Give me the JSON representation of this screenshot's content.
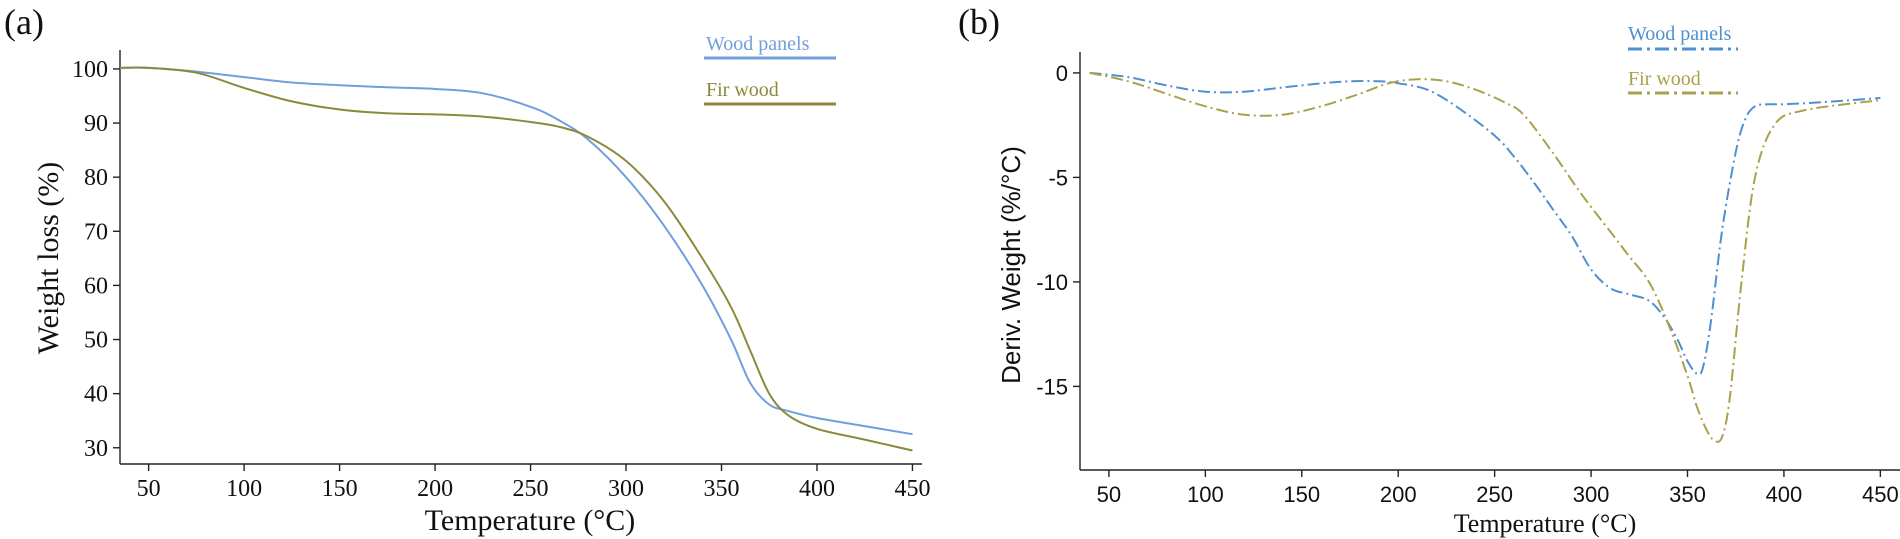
{
  "chart_data": [
    {
      "panel_label": "(a)",
      "type": "line",
      "title": "",
      "xlabel": "Temperature (°C)",
      "ylabel": "Weight loss (%)",
      "xlim": [
        35,
        455
      ],
      "ylim": [
        27,
        103.5
      ],
      "xticks": [
        50,
        100,
        150,
        200,
        250,
        300,
        350,
        400,
        450
      ],
      "yticks": [
        30,
        40,
        50,
        60,
        70,
        80,
        90,
        100
      ],
      "legend": "top-right",
      "series": [
        {
          "name": "Wood panels",
          "color": "#6f9fdc",
          "x": [
            35,
            50,
            75,
            100,
            125,
            150,
            175,
            200,
            225,
            250,
            265,
            280,
            300,
            320,
            340,
            355,
            365,
            375,
            385,
            400,
            425,
            450
          ],
          "y": [
            100.2,
            100.2,
            99.5,
            98.5,
            97.5,
            97,
            96.6,
            96.3,
            95.5,
            93,
            90.5,
            87,
            80,
            71,
            60,
            50,
            42,
            38,
            36.8,
            35.5,
            34,
            32.5
          ]
        },
        {
          "name": "Fir wood",
          "color": "#8b8a3c",
          "x": [
            35,
            50,
            75,
            100,
            125,
            150,
            175,
            200,
            225,
            250,
            265,
            280,
            300,
            320,
            340,
            355,
            365,
            375,
            385,
            400,
            425,
            450
          ],
          "y": [
            100.2,
            100.2,
            99.3,
            96.5,
            94,
            92.5,
            91.8,
            91.6,
            91.2,
            90.2,
            89.3,
            87.5,
            83,
            75.5,
            65,
            56,
            48,
            40,
            36,
            33.5,
            31.5,
            29.5
          ]
        }
      ]
    },
    {
      "panel_label": "(b)",
      "type": "line",
      "title": "",
      "xlabel": "Temperature (°C)",
      "ylabel": "Deriv. Weight (%/°C)",
      "xlim": [
        35,
        455
      ],
      "ylim": [
        -19,
        1
      ],
      "xticks": [
        50,
        100,
        150,
        200,
        250,
        300,
        350,
        400,
        450
      ],
      "yticks": [
        0,
        -5,
        -10,
        -15
      ],
      "legend": "top-right",
      "series": [
        {
          "name": "Wood panels",
          "color": "#4f8fd2",
          "dash": "dash-dot",
          "x": [
            40,
            60,
            80,
            100,
            120,
            140,
            160,
            175,
            190,
            200,
            215,
            230,
            250,
            260,
            270,
            280,
            290,
            300,
            310,
            320,
            330,
            338,
            345,
            350,
            355,
            358,
            362,
            368,
            375,
            380,
            385,
            392,
            400,
            420,
            450
          ],
          "y": [
            0,
            -0.2,
            -0.6,
            -0.9,
            -0.9,
            -0.7,
            -0.5,
            -0.4,
            -0.4,
            -0.5,
            -0.8,
            -1.6,
            -3,
            -4,
            -5.2,
            -6.5,
            -7.8,
            -9.4,
            -10.3,
            -10.6,
            -10.9,
            -11.7,
            -12.8,
            -13.8,
            -14.4,
            -14.1,
            -12,
            -7.5,
            -3.8,
            -2.2,
            -1.6,
            -1.5,
            -1.5,
            -1.4,
            -1.2
          ]
        },
        {
          "name": "Fir wood",
          "color": "#a9a14c",
          "dash": "dash-dot",
          "x": [
            40,
            60,
            80,
            100,
            120,
            140,
            160,
            180,
            195,
            210,
            225,
            240,
            255,
            265,
            280,
            295,
            310,
            320,
            330,
            340,
            350,
            355,
            360,
            364,
            368,
            372,
            378,
            385,
            395,
            410,
            450
          ],
          "y": [
            0,
            -0.4,
            -1,
            -1.6,
            -2,
            -2,
            -1.6,
            -1,
            -0.5,
            -0.3,
            -0.4,
            -0.8,
            -1.4,
            -2,
            -3.8,
            -5.8,
            -7.6,
            -8.8,
            -10,
            -12,
            -14.5,
            -16,
            -17.1,
            -17.6,
            -17.4,
            -15.5,
            -10,
            -5,
            -2.5,
            -1.8,
            -1.3
          ]
        }
      ]
    }
  ]
}
